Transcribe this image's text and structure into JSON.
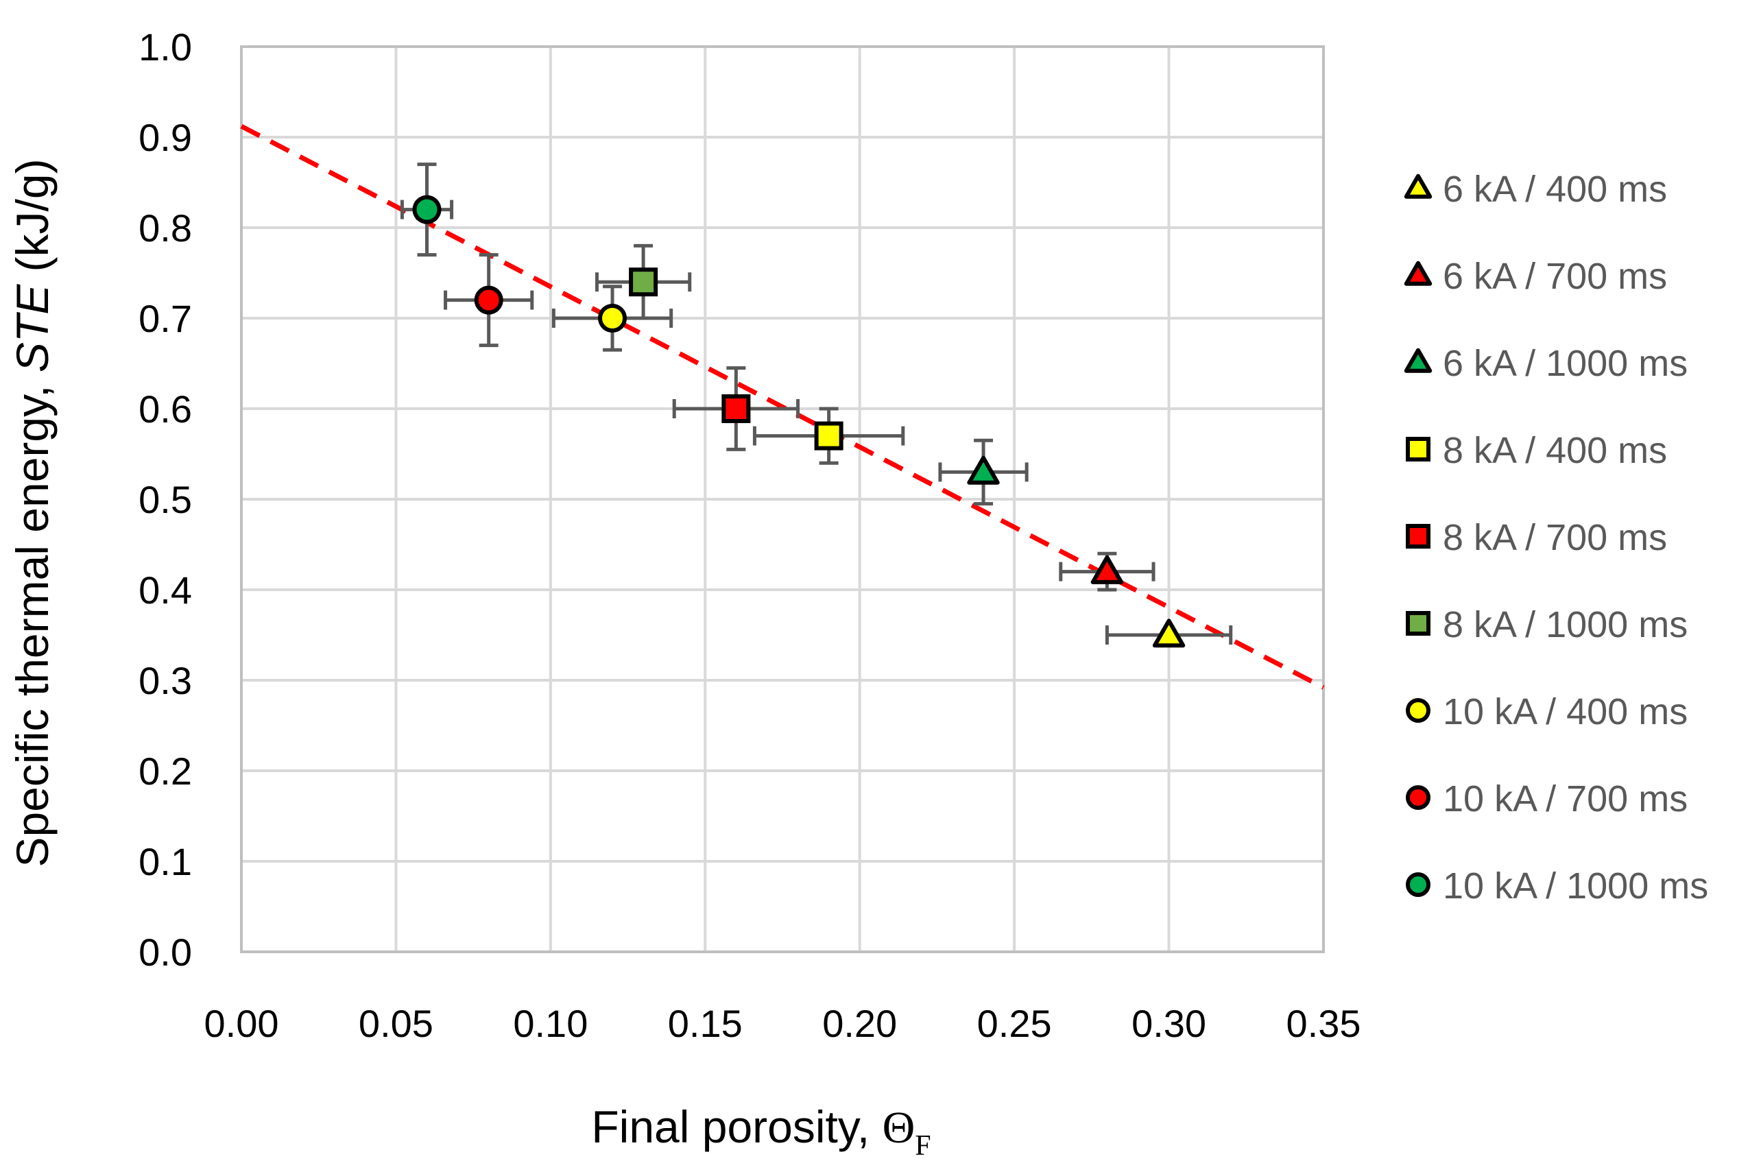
{
  "chart_data": {
    "type": "scatter",
    "title": "",
    "xlabel": {
      "main": "Final porosity, ",
      "symbol": "Θ",
      "subscript": "F"
    },
    "ylabel": {
      "prefix": "Specific thermal energy, ",
      "italic": "STE",
      "suffix": " (kJ/g)"
    },
    "xlim": [
      0,
      0.35
    ],
    "ylim": [
      0,
      1.0
    ],
    "x_ticks": [
      "0.00",
      "0.05",
      "0.10",
      "0.15",
      "0.20",
      "0.25",
      "0.30",
      "0.35"
    ],
    "y_ticks": [
      "0.0",
      "0.1",
      "0.2",
      "0.3",
      "0.4",
      "0.5",
      "0.6",
      "0.7",
      "0.8",
      "0.9",
      "1.0"
    ],
    "grid": true,
    "legend_position": "right",
    "trendline": {
      "type": "linear",
      "style": "dashed",
      "color": "#ff0000",
      "points": [
        [
          0,
          0.912
        ],
        [
          0.35,
          0.292
        ]
      ]
    },
    "series": [
      {
        "name": "6 kA / 400 ms",
        "marker": "triangle",
        "color": "#ffff00",
        "x": 0.3,
        "y": 0.35,
        "xerr": 0.02,
        "yerr": 0.0
      },
      {
        "name": "6 kA / 700 ms",
        "marker": "triangle",
        "color": "#ff0000",
        "x": 0.28,
        "y": 0.42,
        "xerr": 0.015,
        "yerr": 0.02
      },
      {
        "name": "6 kA / 1000 ms",
        "marker": "triangle",
        "color": "#00b050",
        "x": 0.24,
        "y": 0.53,
        "xerr": 0.014,
        "yerr": 0.035
      },
      {
        "name": "8 kA / 400 ms",
        "marker": "square",
        "color": "#ffff00",
        "x": 0.19,
        "y": 0.57,
        "xerr": 0.024,
        "yerr": 0.03
      },
      {
        "name": "8 kA / 700 ms",
        "marker": "square",
        "color": "#ff0000",
        "x": 0.16,
        "y": 0.6,
        "xerr": 0.02,
        "yerr": 0.045
      },
      {
        "name": "8 kA / 1000 ms",
        "marker": "square",
        "color": "#70ad47",
        "x": 0.13,
        "y": 0.74,
        "xerr": 0.015,
        "yerr": 0.04
      },
      {
        "name": "10 kA / 400 ms",
        "marker": "circle",
        "color": "#ffff00",
        "x": 0.12,
        "y": 0.7,
        "xerr": 0.019,
        "yerr": 0.035
      },
      {
        "name": "10 kA / 700 ms",
        "marker": "circle",
        "color": "#ff0000",
        "x": 0.08,
        "y": 0.72,
        "xerr": 0.014,
        "yerr": 0.05
      },
      {
        "name": "10 kA / 1000 ms",
        "marker": "circle",
        "color": "#00b050",
        "x": 0.06,
        "y": 0.82,
        "xerr": 0.008,
        "yerr": 0.05
      }
    ]
  }
}
